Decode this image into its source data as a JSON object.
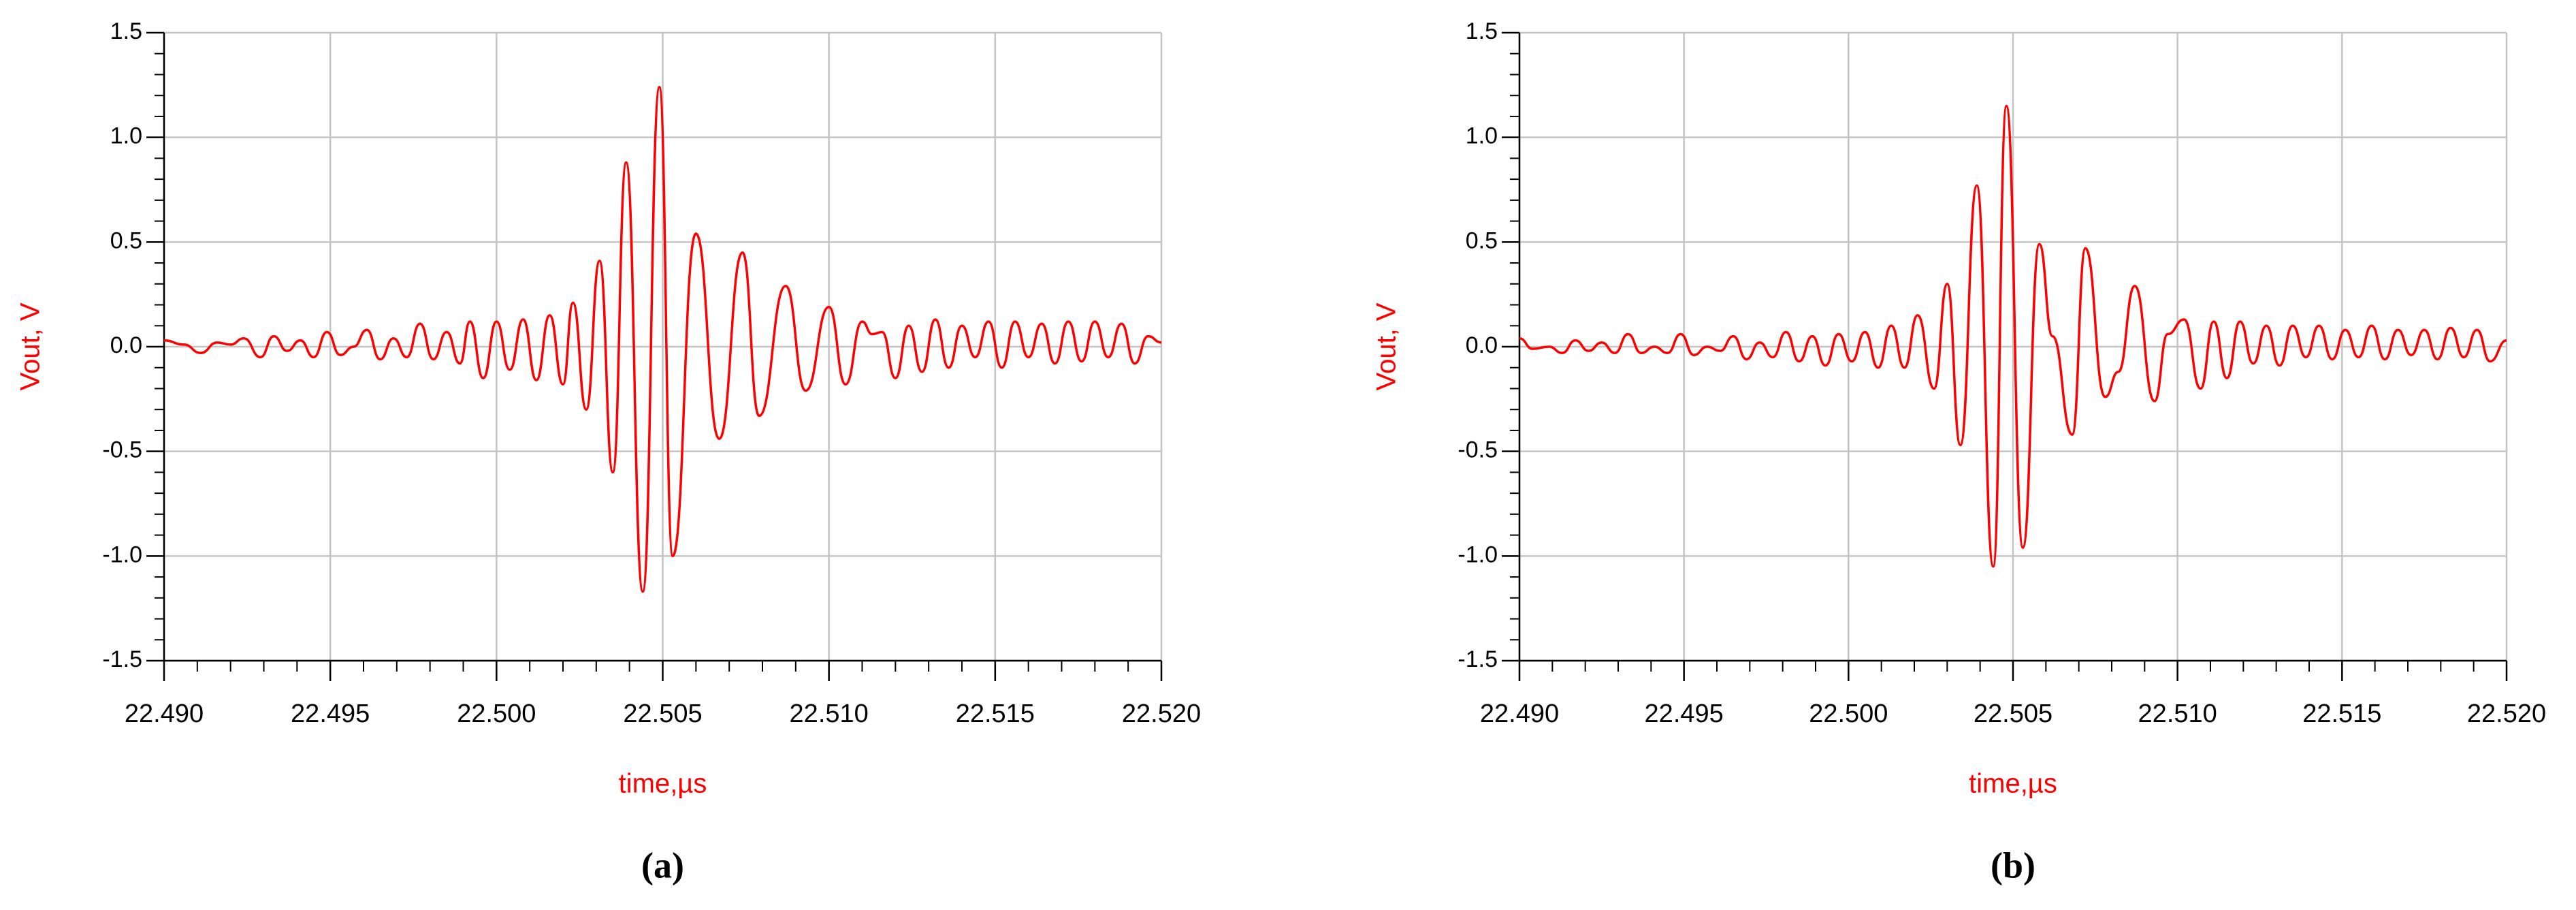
{
  "chart_data": [
    {
      "type": "line",
      "xlabel": "time,µs",
      "ylabel": "Vout, V",
      "caption": "(a)",
      "color": "#ff0000",
      "grid": true,
      "xlim": [
        22.49,
        22.52
      ],
      "xticks": [
        {
          "value": 22.49,
          "label": "22.490"
        },
        {
          "value": 22.495,
          "label": "22.495"
        },
        {
          "value": 22.5,
          "label": "22.500"
        },
        {
          "value": 22.505,
          "label": "22.505"
        },
        {
          "value": 22.51,
          "label": "22.510"
        },
        {
          "value": 22.515,
          "label": "22.515"
        },
        {
          "value": 22.52,
          "label": "22.520"
        }
      ],
      "ylim": [
        -1.5,
        1.5
      ],
      "yticks": [
        -1.5,
        {
          "value": -1,
          "label": "-1.0"
        },
        -0.5,
        {
          "value": 0,
          "label": "0.0"
        },
        0.5,
        {
          "value": 1,
          "label": "1.0"
        },
        1.5
      ],
      "x": [
        22.49,
        22.4906,
        22.4911,
        22.4916,
        22.492,
        22.4924,
        22.4929,
        22.4933,
        22.4937,
        22.4941,
        22.4945,
        22.4949,
        22.4953,
        22.4957,
        22.4961,
        22.4965,
        22.4969,
        22.4973,
        22.4977,
        22.4981,
        22.4985,
        22.4989,
        22.4992,
        22.4996,
        22.5,
        22.5004,
        22.5008,
        22.5012,
        22.5016,
        22.502,
        22.5023,
        22.5027,
        22.5031,
        22.5035,
        22.5039,
        22.5044,
        22.5049,
        22.5053,
        22.506,
        22.5067,
        22.5074,
        22.5079,
        22.5087,
        22.5093,
        22.51,
        22.5105,
        22.511,
        22.5113,
        22.5116,
        22.512,
        22.5124,
        22.5128,
        22.5132,
        22.5136,
        22.514,
        22.5144,
        22.5148,
        22.5152,
        22.5156,
        22.516,
        22.5164,
        22.5168,
        22.5172,
        22.5176,
        22.518,
        22.5184,
        22.5188,
        22.5192,
        22.5196,
        22.52
      ],
      "values": [
        0.03,
        0.01,
        -0.03,
        0.02,
        0.01,
        0.04,
        -0.05,
        0.05,
        -0.02,
        0.03,
        -0.05,
        0.07,
        -0.04,
        0.0,
        0.08,
        -0.06,
        0.04,
        -0.05,
        0.11,
        -0.06,
        0.07,
        -0.08,
        0.12,
        -0.15,
        0.12,
        -0.11,
        0.13,
        -0.16,
        0.15,
        -0.18,
        0.21,
        -0.3,
        0.41,
        -0.6,
        0.88,
        -1.17,
        1.24,
        -1.0,
        0.54,
        -0.44,
        0.45,
        -0.33,
        0.29,
        -0.21,
        0.19,
        -0.18,
        0.12,
        0.06,
        0.07,
        -0.15,
        0.1,
        -0.12,
        0.13,
        -0.1,
        0.1,
        -0.05,
        0.12,
        -0.1,
        0.12,
        -0.05,
        0.11,
        -0.08,
        0.12,
        -0.07,
        0.12,
        -0.05,
        0.11,
        -0.08,
        0.05,
        0.02
      ]
    },
    {
      "type": "line",
      "xlabel": "time,µs",
      "ylabel": "Vout, V",
      "caption": "(b)",
      "color": "#ff0000",
      "grid": true,
      "xlim": [
        22.49,
        22.52
      ],
      "xticks": [
        {
          "value": 22.49,
          "label": "22.490"
        },
        {
          "value": 22.495,
          "label": "22.495"
        },
        {
          "value": 22.5,
          "label": "22.500"
        },
        {
          "value": 22.505,
          "label": "22.505"
        },
        {
          "value": 22.51,
          "label": "22.510"
        },
        {
          "value": 22.515,
          "label": "22.515"
        },
        {
          "value": 22.52,
          "label": "22.520"
        }
      ],
      "ylim": [
        -1.5,
        1.5
      ],
      "yticks": [
        -1.5,
        {
          "value": -1,
          "label": "-1.0"
        },
        -0.5,
        {
          "value": 0,
          "label": "0.0"
        },
        0.5,
        {
          "value": 1,
          "label": "1.0"
        },
        1.5
      ],
      "x": [
        22.49,
        22.4904,
        22.4909,
        22.4913,
        22.4917,
        22.4921,
        22.4925,
        22.4929,
        22.4933,
        22.4937,
        22.4941,
        22.4945,
        22.4949,
        22.4953,
        22.4957,
        22.4961,
        22.4965,
        22.4969,
        22.4973,
        22.4977,
        22.4981,
        22.4985,
        22.4989,
        22.4993,
        22.4997,
        22.5001,
        22.5005,
        22.5009,
        22.5013,
        22.5017,
        22.5021,
        22.5026,
        22.503,
        22.5034,
        22.5039,
        22.5044,
        22.5048,
        22.5053,
        22.5058,
        22.5062,
        22.5068,
        22.5072,
        22.5078,
        22.5082,
        22.5087,
        22.5093,
        22.5097,
        22.5102,
        22.5107,
        22.5111,
        22.5115,
        22.5119,
        22.5123,
        22.5127,
        22.5131,
        22.5135,
        22.5139,
        22.5143,
        22.5147,
        22.5151,
        22.5155,
        22.5159,
        22.5163,
        22.5167,
        22.5171,
        22.5175,
        22.5179,
        22.5183,
        22.5187,
        22.5191,
        22.5195,
        22.52
      ],
      "values": [
        0.04,
        -0.01,
        0.0,
        -0.03,
        0.03,
        -0.02,
        0.02,
        -0.03,
        0.06,
        -0.03,
        0.0,
        -0.03,
        0.06,
        -0.04,
        0.0,
        -0.02,
        0.05,
        -0.06,
        0.02,
        -0.05,
        0.07,
        -0.07,
        0.05,
        -0.09,
        0.06,
        -0.07,
        0.07,
        -0.1,
        0.1,
        -0.1,
        0.15,
        -0.2,
        0.3,
        -0.47,
        0.77,
        -1.05,
        1.15,
        -0.96,
        0.49,
        0.05,
        -0.42,
        0.47,
        -0.24,
        -0.12,
        0.29,
        -0.26,
        0.06,
        0.13,
        -0.2,
        0.12,
        -0.15,
        0.12,
        -0.08,
        0.1,
        -0.09,
        0.1,
        -0.05,
        0.1,
        -0.06,
        0.08,
        -0.05,
        0.1,
        -0.06,
        0.08,
        -0.04,
        0.08,
        -0.06,
        0.09,
        -0.05,
        0.08,
        -0.07,
        0.03
      ]
    }
  ]
}
